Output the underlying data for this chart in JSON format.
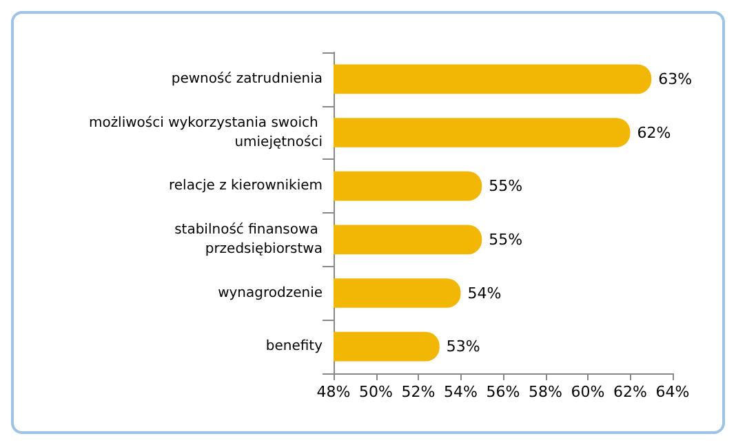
{
  "chart_data": {
    "type": "bar",
    "orientation": "horizontal",
    "categories": [
      "pewność zatrudnienia",
      "możliwości wykorzystania swoich umiejętności",
      "relacje z kierownikiem",
      "stabilność finansowa przedsiębiorstwa",
      "wynagrodzenie",
      "benefity"
    ],
    "values": [
      63,
      62,
      55,
      55,
      54,
      53
    ],
    "value_labels": [
      "63%",
      "62%",
      "55%",
      "55%",
      "54%",
      "53%"
    ],
    "color": "#f2b705",
    "xlim": [
      48,
      64
    ],
    "xticks": [
      {
        "value": 48,
        "label": "48%"
      },
      {
        "value": 50,
        "label": "50%"
      },
      {
        "value": 52,
        "label": "52%"
      },
      {
        "value": 54,
        "label": "54%"
      },
      {
        "value": 56,
        "label": "56%"
      },
      {
        "value": 58,
        "label": "58%"
      },
      {
        "value": 60,
        "label": "60%"
      },
      {
        "value": 62,
        "label": "62%"
      },
      {
        "value": 64,
        "label": "64%"
      }
    ],
    "grid": false
  }
}
